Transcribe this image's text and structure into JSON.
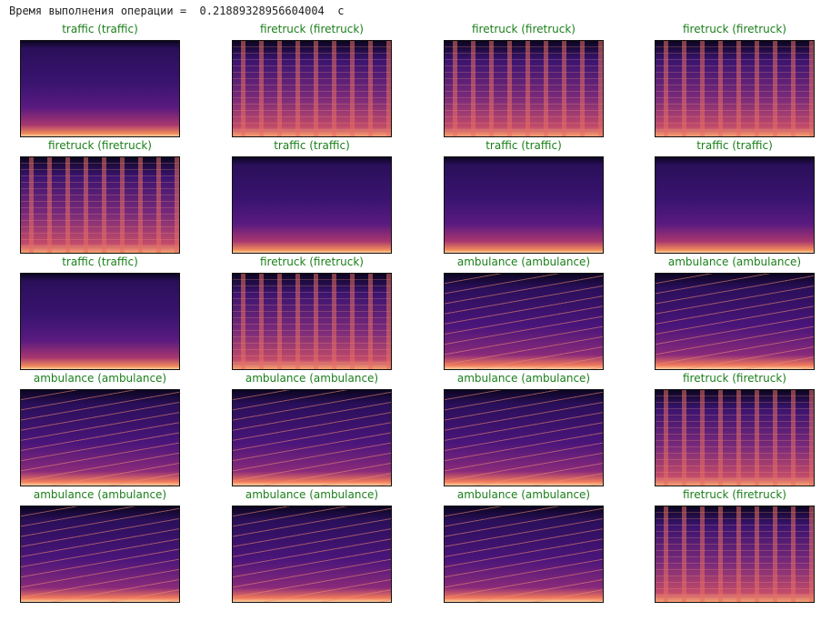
{
  "output_text": "Время выполнения операции =  0.21889328956604004  с",
  "panels": [
    {
      "predicted": "traffic",
      "actual": "traffic"
    },
    {
      "predicted": "firetruck",
      "actual": "firetruck"
    },
    {
      "predicted": "firetruck",
      "actual": "firetruck"
    },
    {
      "predicted": "firetruck",
      "actual": "firetruck"
    },
    {
      "predicted": "firetruck",
      "actual": "firetruck"
    },
    {
      "predicted": "traffic",
      "actual": "traffic"
    },
    {
      "predicted": "traffic",
      "actual": "traffic"
    },
    {
      "predicted": "traffic",
      "actual": "traffic"
    },
    {
      "predicted": "traffic",
      "actual": "traffic"
    },
    {
      "predicted": "firetruck",
      "actual": "firetruck"
    },
    {
      "predicted": "ambulance",
      "actual": "ambulance"
    },
    {
      "predicted": "ambulance",
      "actual": "ambulance"
    },
    {
      "predicted": "ambulance",
      "actual": "ambulance"
    },
    {
      "predicted": "ambulance",
      "actual": "ambulance"
    },
    {
      "predicted": "ambulance",
      "actual": "ambulance"
    },
    {
      "predicted": "firetruck",
      "actual": "firetruck"
    },
    {
      "predicted": "ambulance",
      "actual": "ambulance"
    },
    {
      "predicted": "ambulance",
      "actual": "ambulance"
    },
    {
      "predicted": "ambulance",
      "actual": "ambulance"
    },
    {
      "predicted": "firetruck",
      "actual": "firetruck"
    }
  ],
  "title_color": "#1a7f1a"
}
